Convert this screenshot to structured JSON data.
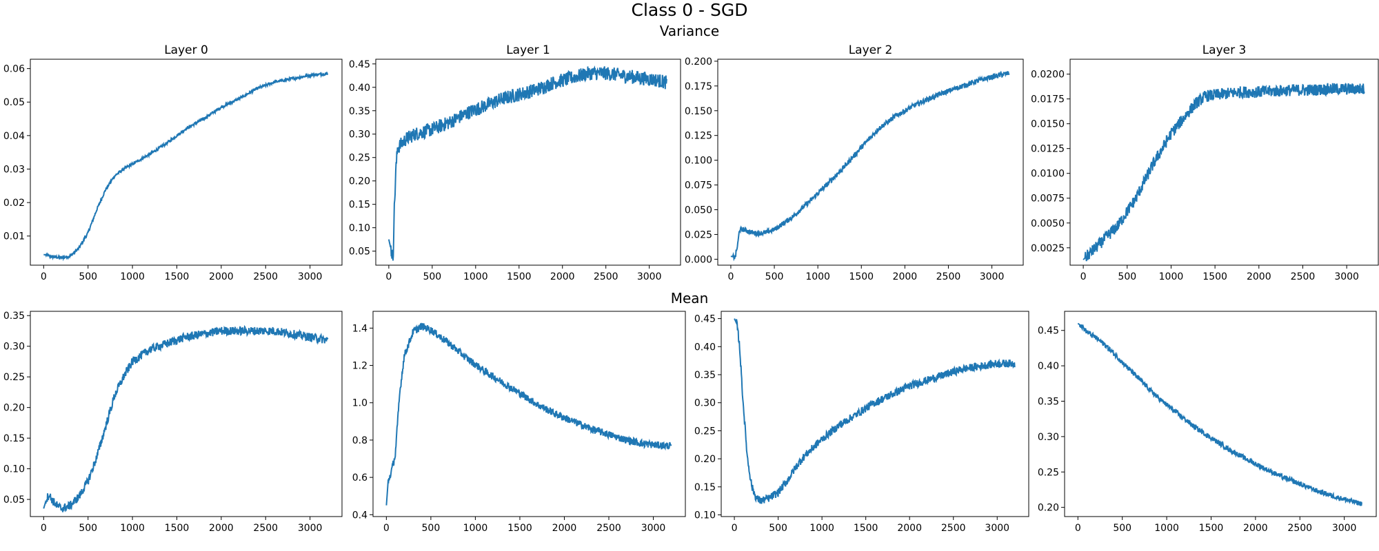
{
  "figure": {
    "title": "Class 0 - SGD",
    "sections": [
      "Variance",
      "Mean"
    ],
    "line_color": "#1f77b4"
  },
  "chart_data": [
    {
      "type": "line",
      "section": "Variance",
      "title": "Layer 0",
      "xlim": [
        -150,
        3360
      ],
      "ylim": [
        0.0013,
        0.0628
      ],
      "xticks": [
        0,
        500,
        1000,
        1500,
        2000,
        2500,
        3000
      ],
      "xtick_labels": [
        "0",
        "500",
        "1000",
        "1500",
        "2000",
        "2500",
        "3000"
      ],
      "yticks": [
        0.01,
        0.02,
        0.03,
        0.04,
        0.05,
        0.06
      ],
      "ytick_labels": [
        "0.01",
        "0.02",
        "0.03",
        "0.04",
        "0.05",
        "0.06"
      ],
      "x": [
        0,
        100,
        200,
        300,
        400,
        500,
        600,
        700,
        800,
        900,
        1000,
        1200,
        1400,
        1600,
        1800,
        2000,
        2200,
        2400,
        2600,
        2800,
        3000,
        3200
      ],
      "y": [
        0.0045,
        0.0038,
        0.0035,
        0.004,
        0.0065,
        0.011,
        0.018,
        0.024,
        0.028,
        0.03,
        0.0315,
        0.0345,
        0.038,
        0.042,
        0.045,
        0.0485,
        0.051,
        0.054,
        0.056,
        0.057,
        0.058,
        0.0585
      ],
      "noise": 0.0004
    },
    {
      "type": "line",
      "section": "Variance",
      "title": "Layer 1",
      "xlim": [
        -150,
        3360
      ],
      "ylim": [
        0.02,
        0.46
      ],
      "xticks": [
        0,
        500,
        1000,
        1500,
        2000,
        2500,
        3000
      ],
      "xtick_labels": [
        "0",
        "500",
        "1000",
        "1500",
        "2000",
        "2500",
        "3000"
      ],
      "yticks": [
        0.05,
        0.1,
        0.15,
        0.2,
        0.25,
        0.3,
        0.35,
        0.4,
        0.45
      ],
      "ytick_labels": [
        "0.05",
        "0.10",
        "0.15",
        "0.20",
        "0.25",
        "0.30",
        "0.35",
        "0.40",
        "0.45"
      ],
      "x": [
        0,
        30,
        50,
        60,
        80,
        100,
        150,
        200,
        300,
        400,
        500,
        700,
        900,
        1100,
        1300,
        1500,
        1700,
        1900,
        2100,
        2300,
        2500,
        2700,
        2900,
        3100,
        3200
      ],
      "y": [
        0.075,
        0.05,
        0.035,
        0.12,
        0.22,
        0.27,
        0.28,
        0.29,
        0.3,
        0.305,
        0.31,
        0.325,
        0.345,
        0.36,
        0.375,
        0.385,
        0.395,
        0.41,
        0.42,
        0.43,
        0.43,
        0.425,
        0.42,
        0.415,
        0.41
      ],
      "noise": 0.015
    },
    {
      "type": "line",
      "section": "Variance",
      "title": "Layer 2",
      "xlim": [
        -150,
        3360
      ],
      "ylim": [
        -0.006,
        0.202
      ],
      "xticks": [
        0,
        500,
        1000,
        1500,
        2000,
        2500,
        3000
      ],
      "xtick_labels": [
        "0",
        "500",
        "1000",
        "1500",
        "2000",
        "2500",
        "3000"
      ],
      "yticks": [
        0.0,
        0.025,
        0.05,
        0.075,
        0.1,
        0.125,
        0.15,
        0.175,
        0.2
      ],
      "ytick_labels": [
        "0.000",
        "0.025",
        "0.050",
        "0.075",
        "0.100",
        "0.125",
        "0.150",
        "0.175",
        "0.200"
      ],
      "x": [
        0,
        50,
        80,
        100,
        150,
        200,
        300,
        400,
        500,
        700,
        900,
        1100,
        1300,
        1500,
        1700,
        1900,
        2100,
        2300,
        2500,
        2700,
        2900,
        3100,
        3200
      ],
      "y": [
        0.003,
        0.002,
        0.015,
        0.03,
        0.03,
        0.028,
        0.026,
        0.027,
        0.03,
        0.042,
        0.058,
        0.075,
        0.093,
        0.113,
        0.132,
        0.145,
        0.155,
        0.163,
        0.17,
        0.176,
        0.182,
        0.186,
        0.188
      ],
      "noise": 0.0025
    },
    {
      "type": "line",
      "section": "Variance",
      "title": "Layer 3",
      "xlim": [
        -150,
        3360
      ],
      "ylim": [
        0.00075,
        0.0215
      ],
      "xticks": [
        0,
        500,
        1000,
        1500,
        2000,
        2500,
        3000
      ],
      "xtick_labels": [
        "0",
        "500",
        "1000",
        "1500",
        "2000",
        "2500",
        "3000"
      ],
      "yticks": [
        0.0025,
        0.005,
        0.0075,
        0.01,
        0.0125,
        0.015,
        0.0175,
        0.02
      ],
      "ytick_labels": [
        "0.0025",
        "0.0050",
        "0.0075",
        "0.0100",
        "0.0125",
        "0.0150",
        "0.0175",
        "0.0200"
      ],
      "x": [
        0,
        200,
        400,
        600,
        800,
        1000,
        1200,
        1300,
        1400,
        1600,
        1800,
        2000,
        2200,
        2400,
        2600,
        2800,
        3000,
        3200
      ],
      "y": [
        0.0013,
        0.003,
        0.0048,
        0.0075,
        0.011,
        0.014,
        0.0162,
        0.0172,
        0.0178,
        0.018,
        0.0182,
        0.0182,
        0.0183,
        0.0184,
        0.0184,
        0.0185,
        0.0185,
        0.0185
      ],
      "noise": 0.0006
    },
    {
      "type": "line",
      "section": "Mean",
      "title": "",
      "xlim": [
        -150,
        3360
      ],
      "ylim": [
        0.022,
        0.357
      ],
      "xticks": [
        0,
        500,
        1000,
        1500,
        2000,
        2500,
        3000
      ],
      "xtick_labels": [
        "0",
        "500",
        "1000",
        "1500",
        "2000",
        "2500",
        "3000"
      ],
      "yticks": [
        0.05,
        0.1,
        0.15,
        0.2,
        0.25,
        0.3,
        0.35
      ],
      "ytick_labels": [
        "0.05",
        "0.10",
        "0.15",
        "0.20",
        "0.25",
        "0.30",
        "0.35"
      ],
      "x": [
        0,
        30,
        60,
        100,
        150,
        200,
        300,
        400,
        500,
        600,
        700,
        800,
        900,
        1000,
        1200,
        1400,
        1600,
        1800,
        2000,
        2200,
        2400,
        2600,
        2800,
        3000,
        3200
      ],
      "y": [
        0.035,
        0.05,
        0.058,
        0.048,
        0.04,
        0.035,
        0.04,
        0.055,
        0.08,
        0.12,
        0.17,
        0.22,
        0.25,
        0.275,
        0.295,
        0.305,
        0.315,
        0.32,
        0.325,
        0.325,
        0.325,
        0.325,
        0.32,
        0.315,
        0.31
      ],
      "noise": 0.007
    },
    {
      "type": "line",
      "section": "Mean",
      "title": "",
      "xlim": [
        -150,
        3360
      ],
      "ylim": [
        0.39,
        1.49
      ],
      "xticks": [
        0,
        500,
        1000,
        1500,
        2000,
        2500,
        3000
      ],
      "xtick_labels": [
        "0",
        "500",
        "1000",
        "1500",
        "2000",
        "2500",
        "3000"
      ],
      "yticks": [
        0.4,
        0.6,
        0.8,
        1.0,
        1.2,
        1.4
      ],
      "ytick_labels": [
        "0.4",
        "0.6",
        "0.8",
        "1.0",
        "1.2",
        "1.4"
      ],
      "x": [
        0,
        20,
        50,
        100,
        150,
        200,
        300,
        400,
        500,
        700,
        900,
        1100,
        1300,
        1500,
        1700,
        1900,
        2100,
        2300,
        2500,
        2700,
        2900,
        3100,
        3200
      ],
      "y": [
        0.45,
        0.58,
        0.62,
        0.72,
        1.05,
        1.25,
        1.38,
        1.41,
        1.39,
        1.32,
        1.24,
        1.17,
        1.11,
        1.05,
        0.99,
        0.94,
        0.9,
        0.86,
        0.83,
        0.8,
        0.78,
        0.77,
        0.77
      ],
      "noise": 0.02
    },
    {
      "type": "line",
      "section": "Mean",
      "title": "",
      "xlim": [
        -150,
        3360
      ],
      "ylim": [
        0.097,
        0.463
      ],
      "xticks": [
        0,
        500,
        1000,
        1500,
        2000,
        2500,
        3000
      ],
      "xtick_labels": [
        "0",
        "500",
        "1000",
        "1500",
        "2000",
        "2500",
        "3000"
      ],
      "yticks": [
        0.1,
        0.15,
        0.2,
        0.25,
        0.3,
        0.35,
        0.4,
        0.45
      ],
      "ytick_labels": [
        "0.10",
        "0.15",
        "0.20",
        "0.25",
        "0.30",
        "0.35",
        "0.40",
        "0.45"
      ],
      "x": [
        0,
        30,
        60,
        100,
        150,
        200,
        250,
        300,
        400,
        500,
        600,
        700,
        800,
        900,
        1000,
        1200,
        1400,
        1600,
        1800,
        2000,
        2200,
        2400,
        2600,
        2800,
        3000,
        3200
      ],
      "y": [
        0.45,
        0.44,
        0.4,
        0.3,
        0.2,
        0.15,
        0.13,
        0.125,
        0.13,
        0.14,
        0.16,
        0.185,
        0.205,
        0.22,
        0.235,
        0.26,
        0.28,
        0.3,
        0.315,
        0.33,
        0.34,
        0.35,
        0.36,
        0.365,
        0.37,
        0.37
      ],
      "noise": 0.007
    },
    {
      "type": "line",
      "section": "Mean",
      "title": "",
      "xlim": [
        -150,
        3360
      ],
      "ylim": [
        0.187,
        0.477
      ],
      "xticks": [
        0,
        500,
        1000,
        1500,
        2000,
        2500,
        3000
      ],
      "xtick_labels": [
        "0",
        "500",
        "1000",
        "1500",
        "2000",
        "2500",
        "3000"
      ],
      "yticks": [
        0.2,
        0.25,
        0.3,
        0.35,
        0.4,
        0.45
      ],
      "ytick_labels": [
        "0.20",
        "0.25",
        "0.30",
        "0.35",
        "0.40",
        "0.45"
      ],
      "x": [
        0,
        50,
        100,
        200,
        300,
        400,
        500,
        700,
        900,
        1100,
        1300,
        1500,
        1700,
        1900,
        2100,
        2300,
        2500,
        2700,
        2900,
        3100,
        3200
      ],
      "y": [
        0.46,
        0.455,
        0.448,
        0.44,
        0.43,
        0.418,
        0.405,
        0.38,
        0.355,
        0.335,
        0.315,
        0.298,
        0.282,
        0.268,
        0.255,
        0.243,
        0.233,
        0.223,
        0.215,
        0.208,
        0.205
      ],
      "noise": 0.0035
    }
  ]
}
